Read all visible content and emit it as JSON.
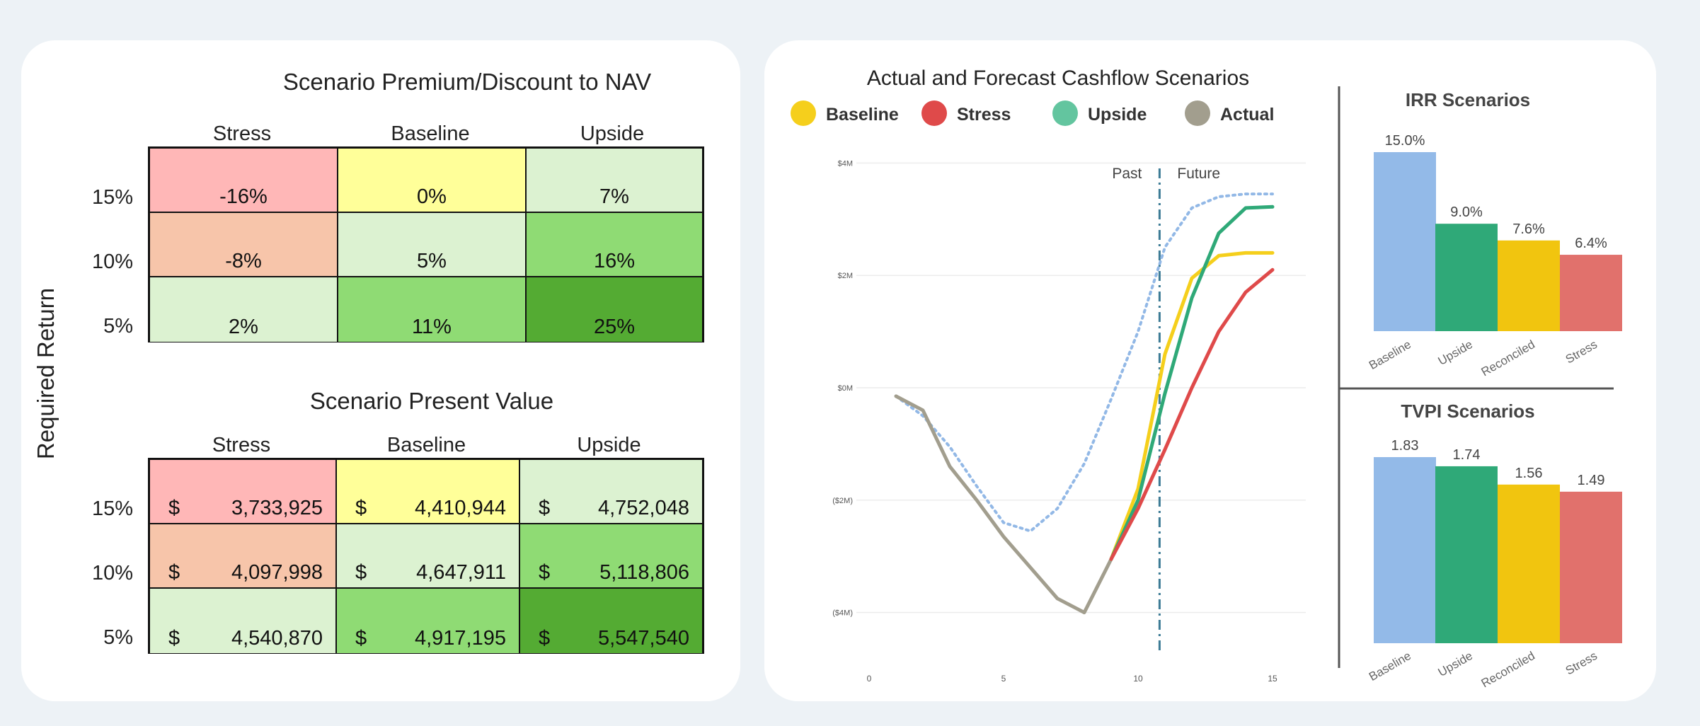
{
  "premium_table": {
    "title": "Scenario Premium/Discount to NAV",
    "columns": [
      "Stress",
      "Baseline",
      "Upside"
    ],
    "rows": [
      "15%",
      "10%",
      "5%"
    ],
    "values": [
      [
        "-16%",
        "0%",
        "7%"
      ],
      [
        "-8%",
        "5%",
        "16%"
      ],
      [
        "2%",
        "11%",
        "25%"
      ]
    ],
    "colors": [
      [
        "#ffb7b7",
        "#ffff99",
        "#dcf2d1"
      ],
      [
        "#f7c5aa",
        "#dcf2d1",
        "#8fdb74"
      ],
      [
        "#dcf2d1",
        "#8fdb74",
        "#54ab33"
      ]
    ]
  },
  "pv_table": {
    "title": "Scenario Present Value",
    "currency": "$",
    "columns": [
      "Stress",
      "Baseline",
      "Upside"
    ],
    "rows": [
      "15%",
      "10%",
      "5%"
    ],
    "values": [
      [
        "3,733,925",
        "4,410,944",
        "4,752,048"
      ],
      [
        "4,097,998",
        "4,647,911",
        "5,118,806"
      ],
      [
        "4,540,870",
        "4,917,195",
        "5,547,540"
      ]
    ],
    "colors": [
      [
        "#ffb7b7",
        "#ffff99",
        "#dcf2d1"
      ],
      [
        "#f7c5aa",
        "#dcf2d1",
        "#8fdb74"
      ],
      [
        "#dcf2d1",
        "#8fdb74",
        "#54ab33"
      ]
    ]
  },
  "y_axis_label": "Required Return",
  "chart_data": [
    {
      "type": "line",
      "title": "Actual and Forecast Cashflow Scenarios",
      "legend": [
        {
          "name": "Baseline",
          "color": "#f5cf1c"
        },
        {
          "name": "Stress",
          "color": "#df4a4a"
        },
        {
          "name": "Upside",
          "color": "#63c59f"
        },
        {
          "name": "Actual",
          "color": "#a29e8e"
        }
      ],
      "legend_placement": "top",
      "xlim": [
        0,
        15
      ],
      "ylim": [
        -4.5,
        4.5
      ],
      "x_ticks": [
        0,
        5,
        10,
        15
      ],
      "y_ticks": [
        {
          "v": 4,
          "label": "$4M"
        },
        {
          "v": 2,
          "label": "$2M"
        },
        {
          "v": 0,
          "label": "$0M"
        },
        {
          "v": -2,
          "label": "($2M)"
        },
        {
          "v": -4,
          "label": "($4M)"
        }
      ],
      "divider_x": 10.8,
      "annotations": [
        "Past",
        "Future"
      ],
      "grid": true,
      "series": [
        {
          "name": "Actual",
          "color": "#a29e8e",
          "style": "solid",
          "points": [
            [
              1,
              -0.15
            ],
            [
              2,
              -0.4
            ],
            [
              3,
              -1.4
            ],
            [
              4,
              -2.0
            ],
            [
              5,
              -2.65
            ],
            [
              6,
              -3.2
            ],
            [
              7,
              -3.75
            ],
            [
              8,
              -4.0
            ],
            [
              9,
              -3.05
            ]
          ]
        },
        {
          "name": "Baseline",
          "color": "#f5cf1c",
          "style": "solid",
          "points": [
            [
              9,
              -3.05
            ],
            [
              10,
              -1.8
            ],
            [
              11,
              0.6
            ],
            [
              12,
              1.95
            ],
            [
              13,
              2.35
            ],
            [
              14,
              2.4
            ],
            [
              15,
              2.4
            ]
          ]
        },
        {
          "name": "Upside",
          "color": "#2fa978",
          "style": "solid",
          "points": [
            [
              9,
              -3.05
            ],
            [
              10,
              -2.0
            ],
            [
              11,
              -0.1
            ],
            [
              12,
              1.6
            ],
            [
              13,
              2.75
            ],
            [
              14,
              3.2
            ],
            [
              15,
              3.22
            ]
          ]
        },
        {
          "name": "Stress",
          "color": "#df4a4a",
          "style": "solid",
          "points": [
            [
              9,
              -3.05
            ],
            [
              10,
              -2.15
            ],
            [
              11,
              -1.1
            ],
            [
              12,
              0.0
            ],
            [
              13,
              1.0
            ],
            [
              14,
              1.7
            ],
            [
              15,
              2.1
            ]
          ]
        },
        {
          "style": "dotted",
          "color": "#92b8e6",
          "points": [
            [
              1,
              -0.15
            ],
            [
              2,
              -0.5
            ],
            [
              3,
              -1.05
            ],
            [
              4,
              -1.75
            ],
            [
              5,
              -2.4
            ],
            [
              6,
              -2.55
            ],
            [
              7,
              -2.15
            ],
            [
              8,
              -1.35
            ],
            [
              9,
              -0.2
            ],
            [
              10,
              1.0
            ],
            [
              11,
              2.5
            ],
            [
              12,
              3.2
            ],
            [
              13,
              3.4
            ],
            [
              14,
              3.45
            ],
            [
              15,
              3.45
            ]
          ]
        }
      ]
    },
    {
      "type": "bar",
      "title": "IRR Scenarios",
      "categories": [
        "Baseline",
        "Upside",
        "Reconciled",
        "Stress"
      ],
      "values": [
        15.0,
        9.0,
        7.6,
        6.4
      ],
      "labels": [
        "15.0%",
        "9.0%",
        "7.6%",
        "6.4%"
      ],
      "colors": [
        "#93bae8",
        "#2fa978",
        "#f1c50f",
        "#e1716c"
      ]
    },
    {
      "type": "bar",
      "title": "TVPI Scenarios",
      "categories": [
        "Baseline",
        "Upside",
        "Reconciled",
        "Stress"
      ],
      "values": [
        1.83,
        1.74,
        1.56,
        1.49
      ],
      "labels": [
        "1.83",
        "1.74",
        "1.56",
        "1.49"
      ],
      "colors": [
        "#93bae8",
        "#2fa978",
        "#f1c50f",
        "#e1716c"
      ]
    }
  ]
}
